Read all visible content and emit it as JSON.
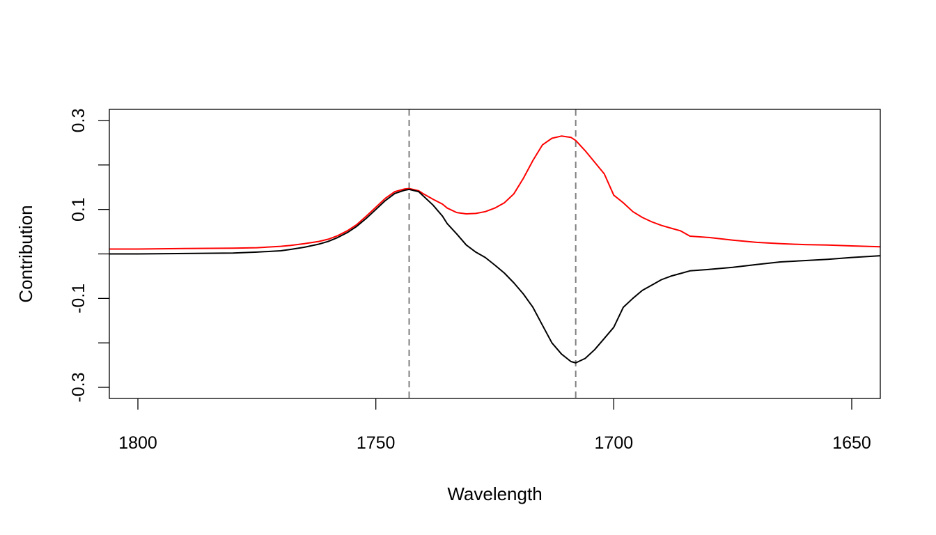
{
  "chart_data": {
    "type": "line",
    "title": "",
    "xlabel": "Wavelength",
    "ylabel": "Contribution",
    "xlim": [
      1806,
      1644
    ],
    "ylim": [
      -0.325,
      0.325
    ],
    "x_reversed": true,
    "grid": false,
    "xticks": [
      1800,
      1750,
      1700,
      1650
    ],
    "xtick_labels": [
      "1800",
      "1750",
      "1700",
      "1650"
    ],
    "yticks": [
      -0.3,
      -0.2,
      -0.1,
      0,
      0.1,
      0.2,
      0.3
    ],
    "ytick_labels": [
      "-0.3",
      "",
      "-0.1",
      "",
      "0.1",
      "",
      "0.3"
    ],
    "vlines": [
      {
        "x": 1743,
        "style": "dashed",
        "color": "#7f7f7f"
      },
      {
        "x": 1708,
        "style": "dashed",
        "color": "#7f7f7f"
      }
    ],
    "series": [
      {
        "color": "#ff0000",
        "x": [
          1806,
          1800,
          1790,
          1780,
          1775,
          1770,
          1768,
          1765,
          1762,
          1760,
          1758,
          1756,
          1754,
          1752,
          1750,
          1748,
          1746,
          1744,
          1743,
          1741,
          1740,
          1738,
          1736,
          1735,
          1733,
          1731,
          1729,
          1727,
          1725,
          1723,
          1721,
          1719,
          1717,
          1715,
          1713,
          1711,
          1709,
          1708,
          1706,
          1704,
          1702,
          1700,
          1698,
          1696,
          1694,
          1692,
          1690,
          1688,
          1686,
          1684,
          1680,
          1675,
          1670,
          1665,
          1660,
          1655,
          1650,
          1644
        ],
        "y": [
          0.011,
          0.011,
          0.012,
          0.013,
          0.014,
          0.017,
          0.019,
          0.023,
          0.028,
          0.033,
          0.041,
          0.052,
          0.066,
          0.085,
          0.105,
          0.125,
          0.14,
          0.146,
          0.147,
          0.142,
          0.135,
          0.123,
          0.112,
          0.103,
          0.093,
          0.09,
          0.091,
          0.095,
          0.103,
          0.115,
          0.135,
          0.17,
          0.21,
          0.245,
          0.26,
          0.265,
          0.262,
          0.255,
          0.232,
          0.206,
          0.18,
          0.132,
          0.115,
          0.095,
          0.082,
          0.072,
          0.064,
          0.058,
          0.052,
          0.04,
          0.037,
          0.031,
          0.026,
          0.023,
          0.021,
          0.02,
          0.018,
          0.016
        ]
      },
      {
        "color": "#000000",
        "x": [
          1806,
          1800,
          1790,
          1780,
          1775,
          1770,
          1768,
          1765,
          1762,
          1760,
          1758,
          1756,
          1754,
          1752,
          1750,
          1748,
          1746,
          1744,
          1743,
          1741,
          1740,
          1738,
          1736,
          1735,
          1733,
          1731,
          1729,
          1727,
          1725,
          1723,
          1721,
          1719,
          1717,
          1715,
          1713,
          1711,
          1709,
          1708,
          1706,
          1704,
          1702,
          1700,
          1698,
          1696,
          1694,
          1692,
          1690,
          1688,
          1686,
          1684,
          1680,
          1675,
          1670,
          1665,
          1660,
          1655,
          1650,
          1644
        ],
        "y": [
          0.0,
          0.0,
          0.001,
          0.002,
          0.004,
          0.007,
          0.01,
          0.015,
          0.022,
          0.028,
          0.037,
          0.048,
          0.062,
          0.08,
          0.1,
          0.12,
          0.136,
          0.143,
          0.145,
          0.14,
          0.13,
          0.11,
          0.085,
          0.068,
          0.045,
          0.02,
          0.004,
          -0.008,
          -0.025,
          -0.043,
          -0.065,
          -0.09,
          -0.12,
          -0.16,
          -0.2,
          -0.225,
          -0.242,
          -0.245,
          -0.235,
          -0.215,
          -0.19,
          -0.165,
          -0.12,
          -0.1,
          -0.082,
          -0.07,
          -0.058,
          -0.05,
          -0.044,
          -0.038,
          -0.035,
          -0.03,
          -0.024,
          -0.018,
          -0.015,
          -0.012,
          -0.008,
          -0.004
        ]
      }
    ]
  }
}
